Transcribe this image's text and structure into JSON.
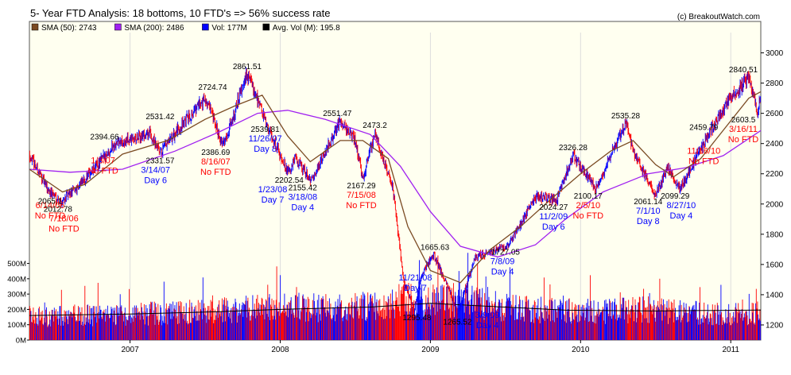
{
  "header": {
    "title": "5- Year FTD Analysis: 18 bottoms, 10 FTD's => 56% success rate",
    "credit": "(c) BreakoutWatch.com"
  },
  "legend": [
    {
      "label": "SMA (50): 2743",
      "color": "#7a4a22"
    },
    {
      "label": "SMA (200): 2486",
      "color": "#a020f0"
    },
    {
      "label": "Vol: 177M",
      "color": "#0000ff"
    },
    {
      "label": "Avg. Vol (M): 195.8",
      "color": "#000000"
    }
  ],
  "colors": {
    "background": "#fffff0",
    "up": "#0000ff",
    "down": "#ff0000",
    "sma50": "#7a4a22",
    "sma200": "#a020f0",
    "annotation_blue": "#0000ff",
    "annotation_red": "#ff0000"
  },
  "chart_data": {
    "type": "line",
    "x_range": [
      2006.33,
      2011.2
    ],
    "price_ylim": [
      1100,
      3150
    ],
    "price_ticks": [
      1000,
      1200,
      1400,
      1600,
      1800,
      2000,
      2200,
      2400,
      2600,
      2800,
      3000
    ],
    "volume_ylim": [
      0,
      560
    ],
    "volume_ticks": [
      {
        "value": 0,
        "label": "0M"
      },
      {
        "value": 100,
        "label": "100M"
      },
      {
        "value": 200,
        "label": "200M"
      },
      {
        "value": 300,
        "label": "300M"
      },
      {
        "value": 400,
        "label": "400M"
      },
      {
        "value": 500,
        "label": "500M"
      }
    ],
    "x_ticks": [
      {
        "value": 2007,
        "label": "2007"
      },
      {
        "value": 2008,
        "label": "2008"
      },
      {
        "value": 2009,
        "label": "2009"
      },
      {
        "value": 2010,
        "label": "2010"
      },
      {
        "value": 2011,
        "label": "2011"
      }
    ],
    "price_series": {
      "name": "Price",
      "points": [
        [
          2006.33,
          2330
        ],
        [
          2006.45,
          2100
        ],
        [
          2006.54,
          2013
        ],
        [
          2006.7,
          2160
        ],
        [
          2006.9,
          2400
        ],
        [
          2007.0,
          2420
        ],
        [
          2007.13,
          2470
        ],
        [
          2007.2,
          2332
        ],
        [
          2007.35,
          2530
        ],
        [
          2007.5,
          2700
        ],
        [
          2007.62,
          2387
        ],
        [
          2007.78,
          2862
        ],
        [
          2007.85,
          2700
        ],
        [
          2007.9,
          2540
        ],
        [
          2008.06,
          2200
        ],
        [
          2008.1,
          2300
        ],
        [
          2008.21,
          2155
        ],
        [
          2008.4,
          2551
        ],
        [
          2008.5,
          2420
        ],
        [
          2008.55,
          2167
        ],
        [
          2008.63,
          2473
        ],
        [
          2008.75,
          2100
        ],
        [
          2008.82,
          1500
        ],
        [
          2008.89,
          1295
        ],
        [
          2008.95,
          1550
        ],
        [
          2009.02,
          1666
        ],
        [
          2009.12,
          1450
        ],
        [
          2009.18,
          1266
        ],
        [
          2009.3,
          1650
        ],
        [
          2009.52,
          1727
        ],
        [
          2009.7,
          2050
        ],
        [
          2009.84,
          2024
        ],
        [
          2009.95,
          2326
        ],
        [
          2010.1,
          2100
        ],
        [
          2010.3,
          2535
        ],
        [
          2010.37,
          2300
        ],
        [
          2010.5,
          2061
        ],
        [
          2010.58,
          2250
        ],
        [
          2010.66,
          2099
        ],
        [
          2010.85,
          2460
        ],
        [
          2011.0,
          2700
        ],
        [
          2011.12,
          2841
        ],
        [
          2011.18,
          2604
        ],
        [
          2011.2,
          2743
        ]
      ]
    },
    "sma50": {
      "name": "SMA (50)",
      "points": [
        [
          2006.33,
          2230
        ],
        [
          2006.55,
          2080
        ],
        [
          2006.7,
          2130
        ],
        [
          2006.95,
          2330
        ],
        [
          2007.25,
          2420
        ],
        [
          2007.5,
          2560
        ],
        [
          2007.7,
          2650
        ],
        [
          2007.88,
          2720
        ],
        [
          2008.05,
          2450
        ],
        [
          2008.2,
          2280
        ],
        [
          2008.4,
          2420
        ],
        [
          2008.55,
          2420
        ],
        [
          2008.72,
          2300
        ],
        [
          2008.85,
          1850
        ],
        [
          2009.0,
          1560
        ],
        [
          2009.2,
          1480
        ],
        [
          2009.4,
          1700
        ],
        [
          2009.6,
          1850
        ],
        [
          2009.8,
          2030
        ],
        [
          2010.0,
          2200
        ],
        [
          2010.2,
          2350
        ],
        [
          2010.35,
          2420
        ],
        [
          2010.5,
          2260
        ],
        [
          2010.62,
          2180
        ],
        [
          2010.8,
          2300
        ],
        [
          2011.0,
          2550
        ],
        [
          2011.12,
          2700
        ],
        [
          2011.2,
          2743
        ]
      ]
    },
    "sma200": {
      "name": "SMA (200)",
      "points": [
        [
          2006.33,
          2230
        ],
        [
          2006.6,
          2210
        ],
        [
          2006.95,
          2230
        ],
        [
          2007.3,
          2350
        ],
        [
          2007.6,
          2480
        ],
        [
          2007.85,
          2600
        ],
        [
          2008.05,
          2620
        ],
        [
          2008.3,
          2560
        ],
        [
          2008.6,
          2460
        ],
        [
          2008.8,
          2250
        ],
        [
          2009.0,
          1950
        ],
        [
          2009.2,
          1720
        ],
        [
          2009.45,
          1650
        ],
        [
          2009.7,
          1730
        ],
        [
          2009.9,
          1900
        ],
        [
          2010.15,
          2080
        ],
        [
          2010.45,
          2200
        ],
        [
          2010.7,
          2240
        ],
        [
          2010.95,
          2320
        ],
        [
          2011.2,
          2486
        ]
      ]
    },
    "volume_series": {
      "name": "Vol",
      "points": [
        [
          2006.33,
          150
        ],
        [
          2006.6,
          160
        ],
        [
          2006.9,
          165
        ],
        [
          2007.2,
          175
        ],
        [
          2007.5,
          190
        ],
        [
          2007.8,
          205
        ],
        [
          2008.1,
          215
        ],
        [
          2008.4,
          205
        ],
        [
          2008.7,
          230
        ],
        [
          2008.85,
          280
        ],
        [
          2009.0,
          250
        ],
        [
          2009.2,
          260
        ],
        [
          2009.5,
          210
        ],
        [
          2009.8,
          195
        ],
        [
          2010.1,
          185
        ],
        [
          2010.4,
          200
        ],
        [
          2010.7,
          180
        ],
        [
          2011.0,
          170
        ],
        [
          2011.2,
          177
        ]
      ]
    },
    "avg_volume": {
      "name": "Avg. Vol (M)",
      "points": [
        [
          2006.33,
          160
        ],
        [
          2007.0,
          170
        ],
        [
          2007.6,
          185
        ],
        [
          2008.0,
          200
        ],
        [
          2008.6,
          215
        ],
        [
          2009.0,
          240
        ],
        [
          2009.4,
          220
        ],
        [
          2009.9,
          195
        ],
        [
          2010.5,
          190
        ],
        [
          2011.2,
          196
        ]
      ]
    },
    "annotations": [
      {
        "x": 2006.34,
        "price": 2100,
        "lines": [
          "6/14/06",
          "No FTD"
        ],
        "color": "red"
      },
      {
        "x": 2006.42,
        "price": 2065,
        "lines": [
          "2065.1"
        ],
        "color": "black"
      },
      {
        "x": 2006.52,
        "price": 2013,
        "lines": [
          "2012.78"
        ],
        "color": "black"
      },
      {
        "x": 2006.56,
        "price": 2013,
        "lines": [
          "7/18/06",
          "No FTD"
        ],
        "color": "red"
      },
      {
        "x": 2006.83,
        "price": 2395,
        "lines": [
          "2394.66"
        ],
        "color": "black"
      },
      {
        "x": 2006.82,
        "price": 2395,
        "lines": [
          "1/3/07",
          "No FTD"
        ],
        "color": "red"
      },
      {
        "x": 2007.2,
        "price": 2531,
        "lines": [
          "2531.42"
        ],
        "color": "black"
      },
      {
        "x": 2007.2,
        "price": 2332,
        "lines": [
          "2331.57"
        ],
        "color": "black"
      },
      {
        "x": 2007.17,
        "price": 2332,
        "lines": [
          "3/14/07",
          "Day 6"
        ],
        "color": "blue"
      },
      {
        "x": 2007.55,
        "price": 2725,
        "lines": [
          "2724.74"
        ],
        "color": "black"
      },
      {
        "x": 2007.57,
        "price": 2387,
        "lines": [
          "2386.69"
        ],
        "color": "black"
      },
      {
        "x": 2007.57,
        "price": 2387,
        "lines": [
          "8/16/07",
          "No FTD"
        ],
        "color": "red"
      },
      {
        "x": 2007.78,
        "price": 2862,
        "lines": [
          "2861.51"
        ],
        "color": "black"
      },
      {
        "x": 2007.9,
        "price": 2540,
        "lines": [
          "2539.81"
        ],
        "color": "black"
      },
      {
        "x": 2007.9,
        "price": 2540,
        "lines": [
          "11/26/07",
          "Day 8"
        ],
        "color": "blue"
      },
      {
        "x": 2008.06,
        "price": 2203,
        "lines": [
          "2202.54"
        ],
        "color": "black"
      },
      {
        "x": 2007.95,
        "price": 2203,
        "lines": [
          "1/23/08",
          "Day 7"
        ],
        "color": "blue"
      },
      {
        "x": 2008.15,
        "price": 2155,
        "lines": [
          "2155.42"
        ],
        "color": "black"
      },
      {
        "x": 2008.15,
        "price": 2155,
        "lines": [
          "3/18/08",
          "Day 4"
        ],
        "color": "blue"
      },
      {
        "x": 2008.38,
        "price": 2551,
        "lines": [
          "2551.47"
        ],
        "color": "black"
      },
      {
        "x": 2008.63,
        "price": 2473,
        "lines": [
          "2473.2"
        ],
        "color": "black"
      },
      {
        "x": 2008.54,
        "price": 2167,
        "lines": [
          "2167.29"
        ],
        "color": "black"
      },
      {
        "x": 2008.54,
        "price": 2167,
        "lines": [
          "7/15/08",
          "No FTD"
        ],
        "color": "red"
      },
      {
        "x": 2008.9,
        "price": 1295,
        "lines": [
          "11/21/08",
          "Day 7"
        ],
        "color": "blue",
        "above": true
      },
      {
        "x": 2008.91,
        "price": 1295,
        "lines": [
          "1295.48"
        ],
        "color": "black"
      },
      {
        "x": 2009.03,
        "price": 1666,
        "lines": [
          "1665.63"
        ],
        "color": "black"
      },
      {
        "x": 2009.18,
        "price": 1266,
        "lines": [
          "1265.52"
        ],
        "color": "black"
      },
      {
        "x": 2009.38,
        "price": 1266,
        "lines": [
          "3/9/09",
          "Day 4"
        ],
        "color": "blue"
      },
      {
        "x": 2009.5,
        "price": 1727,
        "lines": [
          "1727.05"
        ],
        "color": "black"
      },
      {
        "x": 2009.48,
        "price": 1727,
        "lines": [
          "7/8/09",
          "Day 4"
        ],
        "color": "blue"
      },
      {
        "x": 2009.95,
        "price": 2326,
        "lines": [
          "2326.28"
        ],
        "color": "black"
      },
      {
        "x": 2009.82,
        "price": 2024,
        "lines": [
          "2024.27"
        ],
        "color": "black"
      },
      {
        "x": 2009.82,
        "price": 2024,
        "lines": [
          "11/2/09",
          "Day 6"
        ],
        "color": "blue"
      },
      {
        "x": 2010.05,
        "price": 2100,
        "lines": [
          "2100.17"
        ],
        "color": "black"
      },
      {
        "x": 2010.05,
        "price": 2100,
        "lines": [
          "2/5/10",
          "No FTD"
        ],
        "color": "red"
      },
      {
        "x": 2010.3,
        "price": 2535,
        "lines": [
          "2535.28"
        ],
        "color": "black"
      },
      {
        "x": 2010.45,
        "price": 2061,
        "lines": [
          "2061.14"
        ],
        "color": "black"
      },
      {
        "x": 2010.45,
        "price": 2061,
        "lines": [
          "7/1/10",
          "Day 8"
        ],
        "color": "blue"
      },
      {
        "x": 2010.63,
        "price": 2099,
        "lines": [
          "2099.29"
        ],
        "color": "black"
      },
      {
        "x": 2010.67,
        "price": 2099,
        "lines": [
          "8/27/10",
          "Day 4"
        ],
        "color": "blue"
      },
      {
        "x": 2010.82,
        "price": 2460,
        "lines": [
          "2459.79"
        ],
        "color": "black"
      },
      {
        "x": 2010.82,
        "price": 2460,
        "lines": [
          "11/16/10",
          "No FTD"
        ],
        "color": "red"
      },
      {
        "x": 2011.12,
        "price": 2841,
        "lines": [
          "2840.51"
        ],
        "color": "black"
      },
      {
        "x": 2011.14,
        "price": 2604,
        "lines": [
          "2603.5"
        ],
        "color": "black"
      },
      {
        "x": 2011.14,
        "price": 2604,
        "lines": [
          "3/16/11",
          "No FTD"
        ],
        "color": "red"
      }
    ]
  }
}
